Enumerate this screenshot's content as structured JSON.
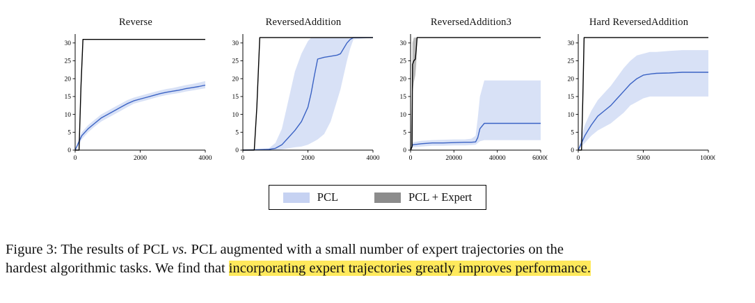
{
  "caption": {
    "label": "Figure 3:",
    "part1": "The results of PCL ",
    "vs": "vs.",
    "part2": " PCL augmented with a small number of expert trajectories on the",
    "line2_pre": "hardest algorithmic tasks. We find that ",
    "highlight": "incorporating expert trajectories greatly improves performance."
  },
  "legend": {
    "items": [
      {
        "label": "PCL",
        "color": "#c6d2f2"
      },
      {
        "label": "PCL + Expert",
        "color": "#8c8c8c"
      }
    ]
  },
  "chart_data": [
    {
      "type": "line",
      "title": "Reverse",
      "xlim": [
        0,
        4000
      ],
      "ylim": [
        0,
        32.5
      ],
      "xticks": [
        0,
        2000,
        4000
      ],
      "yticks": [
        0,
        5,
        10,
        15,
        20,
        25,
        30
      ],
      "series": [
        {
          "name": "PCL",
          "color": "#3a62c4",
          "band_color": "#b8c8ee",
          "band_opacity": 0.55,
          "x": [
            0,
            100,
            200,
            400,
            600,
            800,
            1000,
            1200,
            1400,
            1600,
            1800,
            2000,
            2200,
            2400,
            2600,
            2800,
            3000,
            3200,
            3400,
            3600,
            3800,
            4000
          ],
          "y": [
            0,
            2,
            4,
            6,
            7.5,
            9,
            10,
            11,
            12,
            13,
            13.8,
            14.3,
            14.8,
            15.3,
            15.8,
            16.2,
            16.5,
            16.8,
            17.2,
            17.5,
            17.8,
            18.2
          ],
          "band_low": [
            0,
            1.2,
            3,
            5,
            6.6,
            8,
            9,
            10,
            11,
            12,
            13,
            13.5,
            14,
            14.5,
            15,
            15.4,
            15.7,
            16,
            16.4,
            16.7,
            17,
            17.3
          ],
          "band_high": [
            0,
            2.8,
            5,
            7,
            8.5,
            10,
            11,
            12,
            13,
            14,
            14.7,
            15.2,
            15.7,
            16.2,
            16.7,
            17.1,
            17.4,
            17.8,
            18.2,
            18.5,
            18.9,
            19.3
          ]
        },
        {
          "name": "PCL + Expert",
          "color": "#000000",
          "x": [
            0,
            120,
            180,
            240,
            4000
          ],
          "y": [
            0,
            0,
            18,
            31,
            31
          ]
        }
      ]
    },
    {
      "type": "line",
      "title": "ReversedAddition",
      "xlim": [
        0,
        4000
      ],
      "ylim": [
        0,
        32.5
      ],
      "xticks": [
        0,
        2000,
        4000
      ],
      "yticks": [
        0,
        5,
        10,
        15,
        20,
        25,
        30
      ],
      "series": [
        {
          "name": "PCL",
          "color": "#3a62c4",
          "band_color": "#b8c8ee",
          "band_opacity": 0.55,
          "x": [
            0,
            800,
            1000,
            1200,
            1400,
            1600,
            1800,
            2000,
            2100,
            2200,
            2300,
            2500,
            2700,
            2900,
            3000,
            3100,
            3200,
            3300,
            3400,
            4000
          ],
          "y": [
            0,
            0.2,
            0.5,
            1.5,
            3.5,
            5.5,
            8,
            12,
            16,
            21,
            25.5,
            26,
            26.3,
            26.6,
            27,
            28.5,
            30,
            31,
            31.5,
            31.5
          ],
          "band_low": [
            0,
            0,
            0,
            0.2,
            0.5,
            0.8,
            1,
            1.5,
            2,
            2.5,
            3,
            4.5,
            8,
            14,
            17,
            21,
            25,
            28.5,
            31,
            31.5
          ],
          "band_high": [
            0,
            0.5,
            2,
            6,
            14,
            22,
            27,
            30.5,
            31.5,
            31.5,
            31.5,
            31.5,
            31.5,
            31.5,
            31.5,
            31.5,
            31.5,
            31.5,
            31.5,
            31.5
          ]
        },
        {
          "name": "PCL + Expert",
          "color": "#000000",
          "x": [
            0,
            350,
            430,
            520,
            4000
          ],
          "y": [
            0,
            0,
            12,
            31.5,
            31.5
          ]
        }
      ]
    },
    {
      "type": "line",
      "title": "ReversedAddition3",
      "xlim": [
        0,
        60000
      ],
      "ylim": [
        0,
        32.5
      ],
      "xticks": [
        0,
        20000,
        40000,
        60000
      ],
      "yticks": [
        0,
        5,
        10,
        15,
        20,
        25,
        30
      ],
      "series": [
        {
          "name": "PCL",
          "color": "#3a62c4",
          "band_color": "#b8c8ee",
          "band_opacity": 0.55,
          "x": [
            0,
            1000,
            5000,
            10000,
            15000,
            20000,
            25000,
            28000,
            30000,
            31000,
            32000,
            34000,
            60000
          ],
          "y": [
            0,
            1.5,
            1.8,
            2,
            2,
            2.1,
            2.2,
            2.2,
            2.3,
            3.5,
            6,
            7.5,
            7.5
          ],
          "band_low": [
            0,
            0.8,
            1,
            1.2,
            1.2,
            1.3,
            1.3,
            1.4,
            1.5,
            2,
            2.5,
            2.8,
            2.8
          ],
          "band_high": [
            0,
            2.2,
            2.6,
            2.8,
            2.9,
            3,
            3,
            3.2,
            4,
            9,
            15,
            19.5,
            19.5
          ]
        },
        {
          "name": "PCL + Expert",
          "color": "#000000",
          "band_color": "#8c8c8c",
          "band_opacity": 0.6,
          "x": [
            0,
            700,
            900,
            1500,
            2200,
            2600,
            3000,
            60000
          ],
          "y": [
            0,
            1,
            24,
            25,
            25.5,
            28,
            31.5,
            31.5
          ],
          "band_low": [
            0,
            0,
            16,
            19,
            21,
            24,
            31.5,
            31.5
          ],
          "band_high": [
            0,
            18,
            30,
            31.5,
            31.5,
            31.5,
            31.5,
            31.5
          ]
        }
      ]
    },
    {
      "type": "line",
      "title": "Hard ReversedAddition",
      "xlim": [
        0,
        10000
      ],
      "ylim": [
        0,
        32.5
      ],
      "xticks": [
        0,
        5000,
        10000
      ],
      "yticks": [
        0,
        5,
        10,
        15,
        20,
        25,
        30
      ],
      "series": [
        {
          "name": "PCL",
          "color": "#3a62c4",
          "band_color": "#b8c8ee",
          "band_opacity": 0.55,
          "x": [
            0,
            250,
            500,
            750,
            1000,
            1500,
            2000,
            2500,
            3000,
            3500,
            4000,
            4500,
            5000,
            5500,
            6000,
            7000,
            8000,
            9000,
            10000
          ],
          "y": [
            0,
            2,
            4,
            5.5,
            7,
            9.5,
            11,
            12.5,
            14.5,
            16.5,
            18.5,
            20,
            21,
            21.3,
            21.5,
            21.6,
            21.8,
            21.8,
            21.8
          ],
          "band_low": [
            0,
            1,
            2,
            3,
            4,
            5.5,
            6.5,
            7.5,
            9,
            10.5,
            12.5,
            13.5,
            14.5,
            15,
            15,
            15,
            15,
            15,
            15
          ],
          "band_high": [
            0,
            4,
            7,
            9,
            11,
            14,
            16,
            18,
            20.5,
            23,
            25,
            26.5,
            27,
            27.5,
            27.5,
            27.8,
            28,
            28,
            28
          ]
        },
        {
          "name": "PCL + Expert",
          "color": "#000000",
          "x": [
            0,
            250,
            350,
            450,
            10000
          ],
          "y": [
            0,
            0,
            14,
            31.5,
            31.5
          ]
        }
      ]
    }
  ]
}
